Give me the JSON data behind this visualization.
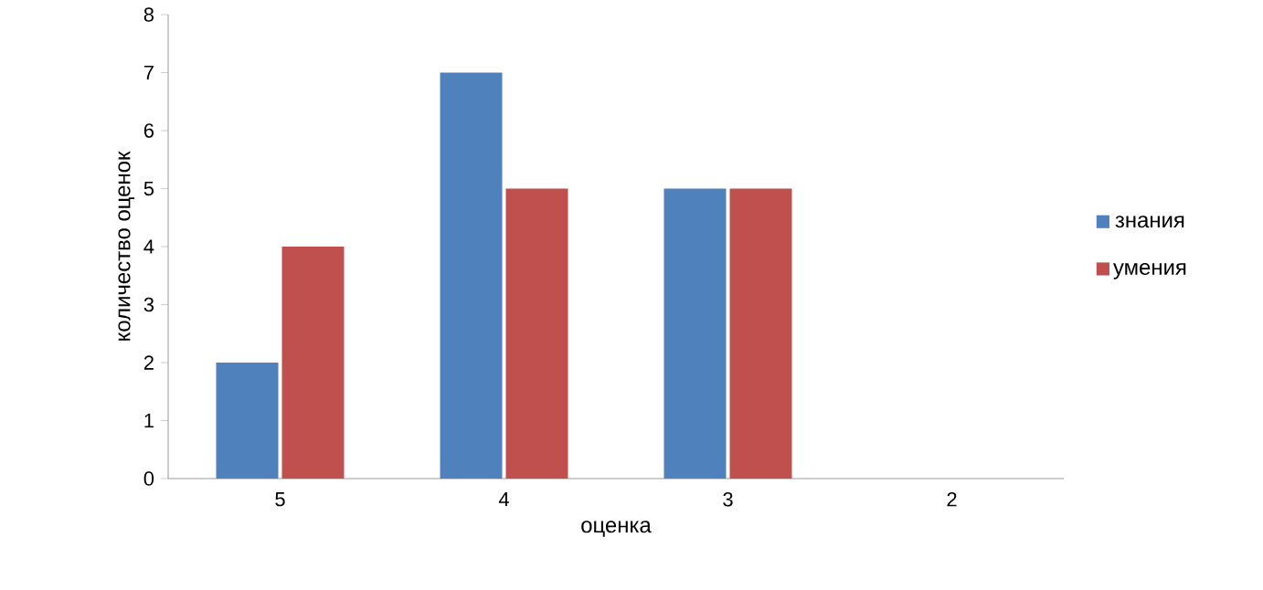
{
  "chart_data": {
    "type": "bar",
    "xlabel": "оценка",
    "ylabel": "количество оценок",
    "categories": [
      "5",
      "4",
      "3",
      "2"
    ],
    "series": [
      {
        "name": "знания",
        "color": "#4f81bd",
        "values": [
          2,
          7,
          5,
          0
        ]
      },
      {
        "name": "умения",
        "color": "#c0504d",
        "values": [
          4,
          5,
          5,
          0
        ]
      }
    ],
    "ylim": [
      0,
      8
    ],
    "yticks": [
      0,
      1,
      2,
      3,
      4,
      5,
      6,
      7,
      8
    ],
    "grid": false,
    "legend": "right"
  }
}
